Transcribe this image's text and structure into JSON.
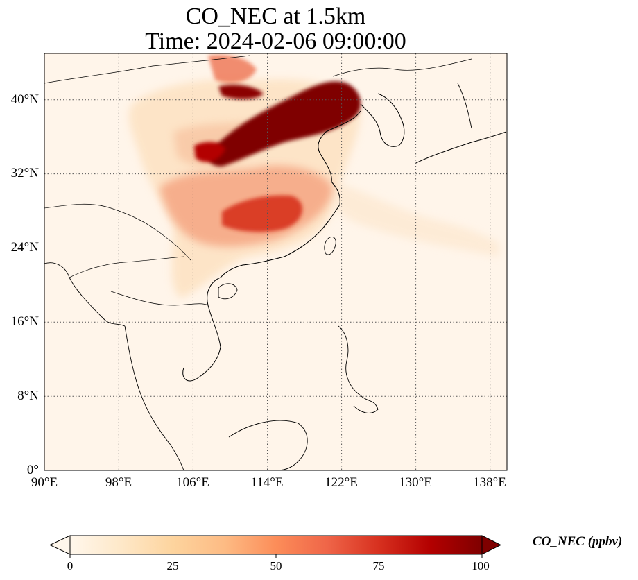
{
  "title": {
    "line1": "CO_NEC at 1.5km",
    "line2": "Time: 2024-02-06 09:00:00"
  },
  "map": {
    "projection": "PlateCarree",
    "lon_range": [
      90,
      140
    ],
    "lat_range": [
      0,
      45
    ],
    "gridlines": "dotted",
    "colormap": "OrRd",
    "x_ticks": [
      "90°E",
      "98°E",
      "106°E",
      "114°E",
      "122°E",
      "130°E",
      "138°E"
    ],
    "y_ticks": [
      "0°",
      "8°N",
      "16°N",
      "24°N",
      "32°N",
      "40°N"
    ],
    "features": [
      "coastlines",
      "country borders"
    ]
  },
  "colorbar": {
    "label": "CO_NEC (ppbv)",
    "ticks": [
      "0",
      "25",
      "50",
      "75",
      "100"
    ],
    "range": [
      0,
      100
    ],
    "extend": "both",
    "colors": [
      "#fff7ec",
      "#fee8c8",
      "#fdd49e",
      "#fdbb84",
      "#fc8d59",
      "#ef6548",
      "#d7301f",
      "#b30000",
      "#7f0000"
    ]
  }
}
